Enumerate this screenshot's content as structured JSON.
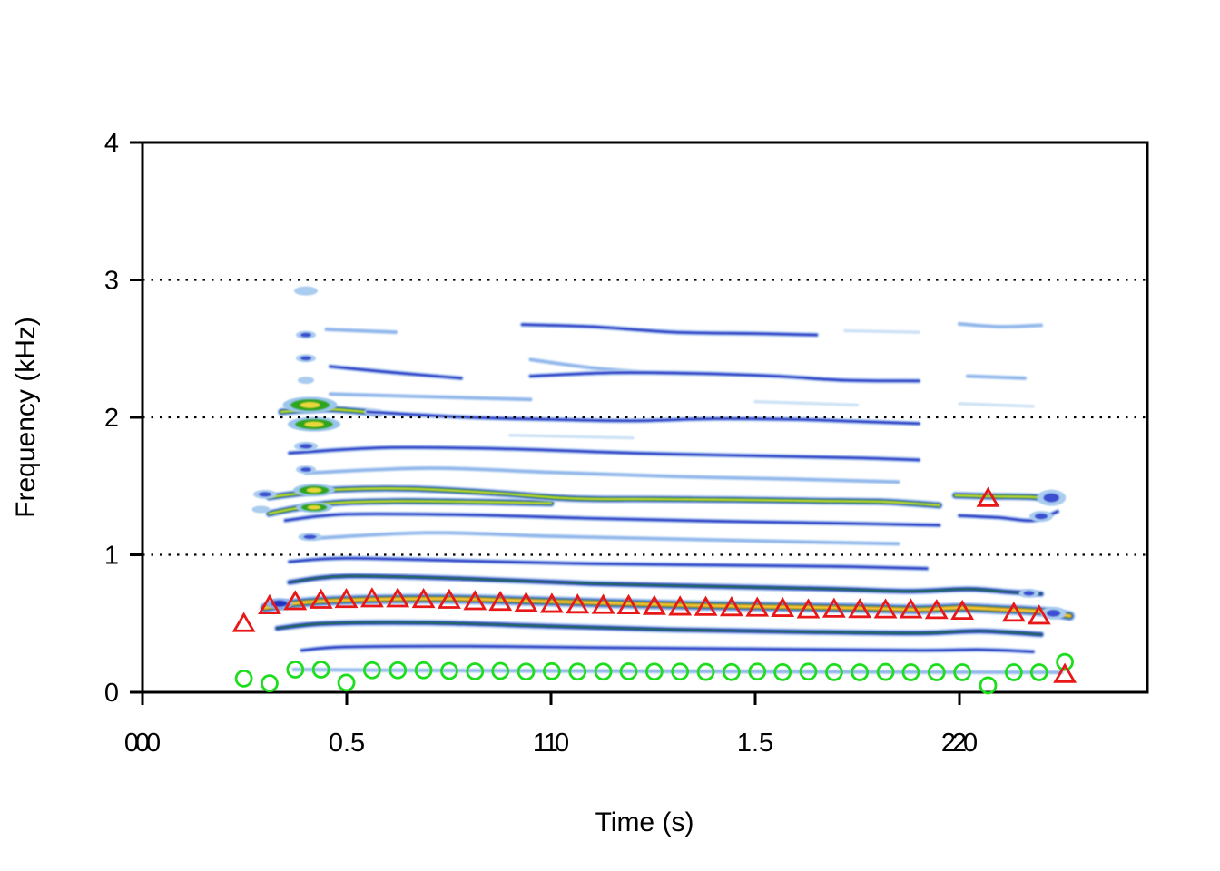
{
  "chart_data": {
    "type": "heatmap",
    "subtype": "spectrogram-with-pitch-track",
    "title": "",
    "xlabel": "Time (s)",
    "ylabel": "Frequency (kHz)",
    "xlim": [
      0,
      2.46
    ],
    "ylim": [
      0,
      4
    ],
    "grid": "dotted horizontal lines",
    "gridlines_khz": [
      1,
      2,
      3
    ],
    "x_ticks": [
      {
        "t": 0.0,
        "labels": [
          "0.0",
          "0"
        ]
      },
      {
        "t": 0.5,
        "labels": [
          "0.5"
        ]
      },
      {
        "t": 1.0,
        "labels": [
          "1.0",
          "1"
        ]
      },
      {
        "t": 1.5,
        "labels": [
          "1.5"
        ]
      },
      {
        "t": 2.0,
        "labels": [
          "2.0",
          "2"
        ]
      }
    ],
    "y_ticks": [
      {
        "f": 0,
        "label": "0"
      },
      {
        "f": 1,
        "label": "1"
      },
      {
        "f": 2,
        "label": "2"
      },
      {
        "f": 3,
        "label": "3"
      },
      {
        "f": 4,
        "label": "4"
      }
    ],
    "colors": {
      "triangle_marker": "#E81818",
      "circle_marker": "#1EDD1E",
      "gridline": "#000000",
      "axis": "#000000"
    },
    "band_styles": {
      "faint": [
        [
          "#CFE3F6",
          3.5
        ]
      ],
      "light": [
        [
          "#BFD9F4",
          5
        ],
        [
          "#8FB4EA",
          2.6
        ]
      ],
      "medium": [
        [
          "#C5DDF6",
          6
        ],
        [
          "#7B97E4",
          4
        ],
        [
          "#2F3FC8",
          2.4
        ]
      ],
      "strong": [
        [
          "#BBD5F2",
          8
        ],
        [
          "#4558D6",
          5
        ],
        [
          "#1525B5",
          3.4
        ],
        [
          "#217A18",
          1.7
        ]
      ],
      "strong-green": [
        [
          "#B2CFF0",
          9
        ],
        [
          "#3A50D0",
          6.2
        ],
        [
          "#1E8F14",
          4.2
        ],
        [
          "#7DC52A",
          2.3
        ],
        [
          "#DCE03E",
          1.1
        ]
      ],
      "hot": [
        [
          "#A8CAEE",
          12
        ],
        [
          "#3A50D0",
          8.5
        ],
        [
          "#1FA01A",
          6
        ],
        [
          "#E8821E",
          3.6
        ],
        [
          "#F0DC3C",
          1.6
        ]
      ]
    },
    "blob_styles": {
      "blue-light": [
        [
          "#A9CCEF",
          1.0
        ]
      ],
      "blue": [
        [
          "#A9CCEF",
          1.0
        ],
        [
          "#3A50D0",
          0.55
        ]
      ],
      "blue-dark": [
        [
          "#8FB2EA",
          1.0
        ],
        [
          "#2030C0",
          0.6
        ]
      ],
      "green-yellow": [
        [
          "#9BC6EC",
          1.0
        ],
        [
          "#2FA51E",
          0.72
        ],
        [
          "#E8D83A",
          0.36
        ]
      ]
    },
    "harmonic_bands": [
      {
        "name": "h1-f0-trace",
        "style": "light",
        "pts": [
          [
            0.37,
            0.165
          ],
          [
            0.6,
            0.16
          ],
          [
            1.0,
            0.155
          ],
          [
            1.5,
            0.15
          ],
          [
            1.9,
            0.147
          ],
          [
            2.25,
            0.145
          ]
        ]
      },
      {
        "name": "h2",
        "style": "medium",
        "pts": [
          [
            0.39,
            0.305
          ],
          [
            0.5,
            0.33
          ],
          [
            0.8,
            0.335
          ],
          [
            1.1,
            0.325
          ],
          [
            1.5,
            0.315
          ],
          [
            1.9,
            0.305
          ],
          [
            2.05,
            0.31
          ],
          [
            2.18,
            0.295
          ]
        ]
      },
      {
        "name": "h3",
        "style": "strong",
        "pts": [
          [
            0.33,
            0.465
          ],
          [
            0.45,
            0.5
          ],
          [
            0.7,
            0.505
          ],
          [
            1.0,
            0.48
          ],
          [
            1.3,
            0.455
          ],
          [
            1.6,
            0.44
          ],
          [
            1.9,
            0.43
          ],
          [
            2.05,
            0.445
          ],
          [
            2.2,
            0.42
          ]
        ]
      },
      {
        "name": "h4-hot",
        "style": "hot",
        "pts": [
          [
            0.3,
            0.615
          ],
          [
            0.4,
            0.655
          ],
          [
            0.55,
            0.675
          ],
          [
            0.75,
            0.68
          ],
          [
            0.95,
            0.665
          ],
          [
            1.15,
            0.648
          ],
          [
            1.35,
            0.632
          ],
          [
            1.55,
            0.622
          ],
          [
            1.75,
            0.613
          ],
          [
            1.9,
            0.603
          ],
          [
            2.0,
            0.615
          ],
          [
            2.1,
            0.603
          ],
          [
            2.2,
            0.588
          ],
          [
            2.27,
            0.555
          ]
        ]
      },
      {
        "name": "h5",
        "style": "strong",
        "pts": [
          [
            0.36,
            0.8
          ],
          [
            0.5,
            0.845
          ],
          [
            0.8,
            0.825
          ],
          [
            1.1,
            0.79
          ],
          [
            1.4,
            0.77
          ],
          [
            1.7,
            0.75
          ],
          [
            1.88,
            0.735
          ],
          [
            2.02,
            0.75
          ],
          [
            2.12,
            0.73
          ],
          [
            2.2,
            0.715
          ]
        ]
      },
      {
        "name": "h6",
        "style": "medium",
        "pts": [
          [
            0.36,
            0.95
          ],
          [
            0.5,
            0.975
          ],
          [
            0.8,
            0.955
          ],
          [
            1.1,
            0.935
          ],
          [
            1.4,
            0.925
          ],
          [
            1.7,
            0.915
          ],
          [
            1.92,
            0.9
          ]
        ]
      },
      {
        "name": "h7",
        "style": "light",
        "pts": [
          [
            0.42,
            1.12
          ],
          [
            0.7,
            1.16
          ],
          [
            1.0,
            1.135
          ],
          [
            1.3,
            1.115
          ],
          [
            1.6,
            1.095
          ],
          [
            1.85,
            1.08
          ]
        ]
      },
      {
        "name": "h8",
        "style": "medium",
        "pts": [
          [
            0.35,
            1.25
          ],
          [
            0.5,
            1.295
          ],
          [
            0.8,
            1.29
          ],
          [
            1.1,
            1.265
          ],
          [
            1.4,
            1.245
          ],
          [
            1.7,
            1.23
          ],
          [
            1.95,
            1.215
          ]
        ]
      },
      {
        "name": "h8-tail",
        "style": "medium",
        "pts": [
          [
            2.0,
            1.285
          ],
          [
            2.1,
            1.27
          ],
          [
            2.18,
            1.25
          ],
          [
            2.24,
            1.315
          ]
        ]
      },
      {
        "name": "h9-green-low",
        "style": "strong-green",
        "pts": [
          [
            0.31,
            1.3
          ],
          [
            0.37,
            1.335
          ],
          [
            0.46,
            1.375
          ],
          [
            0.62,
            1.39
          ],
          [
            0.82,
            1.385
          ],
          [
            1.0,
            1.375
          ]
        ]
      },
      {
        "name": "h9-green-hi",
        "style": "strong-green",
        "pts": [
          [
            0.31,
            1.42
          ],
          [
            0.38,
            1.445
          ],
          [
            0.48,
            1.475
          ],
          [
            0.66,
            1.48
          ],
          [
            0.86,
            1.45
          ],
          [
            1.05,
            1.41
          ],
          [
            1.25,
            1.405
          ],
          [
            1.45,
            1.4
          ],
          [
            1.65,
            1.392
          ],
          [
            1.82,
            1.385
          ],
          [
            1.95,
            1.36
          ]
        ]
      },
      {
        "name": "h9-tail",
        "style": "strong-green",
        "pts": [
          [
            1.99,
            1.432
          ],
          [
            2.08,
            1.425
          ],
          [
            2.18,
            1.42
          ],
          [
            2.24,
            1.398
          ]
        ]
      },
      {
        "name": "h10",
        "style": "light",
        "pts": [
          [
            0.4,
            1.595
          ],
          [
            0.7,
            1.63
          ],
          [
            1.0,
            1.6
          ],
          [
            1.3,
            1.57
          ],
          [
            1.6,
            1.55
          ],
          [
            1.85,
            1.53
          ]
        ]
      },
      {
        "name": "h11",
        "style": "medium",
        "pts": [
          [
            0.36,
            1.74
          ],
          [
            0.6,
            1.78
          ],
          [
            0.9,
            1.77
          ],
          [
            1.2,
            1.74
          ],
          [
            1.5,
            1.72
          ],
          [
            1.75,
            1.705
          ],
          [
            1.9,
            1.69
          ]
        ]
      },
      {
        "name": "h12",
        "style": "faint",
        "pts": [
          [
            0.9,
            1.87
          ],
          [
            1.2,
            1.85
          ]
        ]
      },
      {
        "name": "h13-head",
        "style": "strong-green",
        "pts": [
          [
            0.34,
            2.04
          ],
          [
            0.45,
            2.06
          ],
          [
            0.58,
            2.03
          ]
        ]
      },
      {
        "name": "h13",
        "style": "medium",
        "pts": [
          [
            0.55,
            2.04
          ],
          [
            0.8,
            2.0
          ],
          [
            1.0,
            1.985
          ],
          [
            1.2,
            1.975
          ],
          [
            1.4,
            1.99
          ],
          [
            1.6,
            1.985
          ],
          [
            1.75,
            1.97
          ],
          [
            1.9,
            1.955
          ]
        ]
      },
      {
        "name": "h14a",
        "style": "light",
        "pts": [
          [
            0.46,
            2.17
          ],
          [
            0.7,
            2.15
          ],
          [
            0.95,
            2.13
          ]
        ]
      },
      {
        "name": "h14b",
        "style": "faint",
        "pts": [
          [
            1.5,
            2.115
          ],
          [
            1.75,
            2.09
          ]
        ]
      },
      {
        "name": "h14c",
        "style": "faint",
        "pts": [
          [
            2.0,
            2.1
          ],
          [
            2.18,
            2.08
          ]
        ]
      },
      {
        "name": "h15a",
        "style": "medium",
        "pts": [
          [
            0.46,
            2.37
          ],
          [
            0.6,
            2.33
          ],
          [
            0.78,
            2.285
          ]
        ]
      },
      {
        "name": "h15b",
        "style": "light",
        "pts": [
          [
            0.95,
            2.42
          ],
          [
            1.1,
            2.36
          ],
          [
            1.22,
            2.33
          ]
        ]
      },
      {
        "name": "h15c",
        "style": "medium",
        "pts": [
          [
            0.95,
            2.3
          ],
          [
            1.15,
            2.325
          ],
          [
            1.35,
            2.32
          ],
          [
            1.55,
            2.3
          ],
          [
            1.72,
            2.27
          ],
          [
            1.9,
            2.265
          ]
        ]
      },
      {
        "name": "h15d",
        "style": "light",
        "pts": [
          [
            2.02,
            2.3
          ],
          [
            2.16,
            2.285
          ]
        ]
      },
      {
        "name": "h16a",
        "style": "light",
        "pts": [
          [
            0.45,
            2.64
          ],
          [
            0.62,
            2.62
          ]
        ]
      },
      {
        "name": "h16b",
        "style": "medium",
        "pts": [
          [
            0.93,
            2.675
          ],
          [
            1.1,
            2.66
          ],
          [
            1.3,
            2.62
          ],
          [
            1.5,
            2.61
          ],
          [
            1.65,
            2.6
          ]
        ]
      },
      {
        "name": "h16c",
        "style": "faint",
        "pts": [
          [
            1.72,
            2.63
          ],
          [
            1.9,
            2.62
          ]
        ]
      },
      {
        "name": "h16d",
        "style": "light",
        "pts": [
          [
            2.0,
            2.68
          ],
          [
            2.1,
            2.66
          ],
          [
            2.2,
            2.67
          ]
        ]
      }
    ],
    "onset_blobs": [
      [
        0.4,
        2.92,
        13,
        5,
        "blue-light"
      ],
      [
        0.4,
        2.6,
        11,
        4.5,
        "blue"
      ],
      [
        0.4,
        2.43,
        11,
        4.5,
        "blue"
      ],
      [
        0.4,
        2.27,
        9,
        4,
        "blue-light"
      ],
      [
        0.41,
        2.09,
        30,
        9,
        "green-yellow"
      ],
      [
        0.42,
        1.95,
        29,
        8,
        "green-yellow"
      ],
      [
        0.4,
        1.79,
        13,
        5,
        "blue"
      ],
      [
        0.4,
        1.62,
        11,
        4.5,
        "blue"
      ],
      [
        0.42,
        1.47,
        23,
        7,
        "green-yellow"
      ],
      [
        0.42,
        1.345,
        20,
        6,
        "green-yellow"
      ],
      [
        0.41,
        1.13,
        13,
        4.5,
        "blue"
      ],
      [
        0.335,
        0.645,
        15,
        6,
        "blue-dark"
      ],
      [
        0.3,
        1.44,
        13,
        5,
        "blue"
      ],
      [
        0.29,
        1.33,
        10,
        4,
        "blue-light"
      ],
      [
        2.225,
        1.415,
        16,
        9,
        "blue"
      ],
      [
        2.2,
        1.28,
        13,
        6,
        "blue"
      ],
      [
        2.23,
        0.575,
        14,
        7,
        "blue"
      ],
      [
        2.17,
        0.72,
        11,
        5,
        "blue"
      ]
    ],
    "pitch_triangles_t_f": [
      [
        0.248,
        0.5
      ],
      [
        0.311,
        0.63
      ],
      [
        0.374,
        0.66
      ],
      [
        0.437,
        0.67
      ],
      [
        0.499,
        0.675
      ],
      [
        0.562,
        0.68
      ],
      [
        0.625,
        0.68
      ],
      [
        0.688,
        0.675
      ],
      [
        0.751,
        0.67
      ],
      [
        0.814,
        0.66
      ],
      [
        0.876,
        0.655
      ],
      [
        0.939,
        0.648
      ],
      [
        1.002,
        0.64
      ],
      [
        1.065,
        0.635
      ],
      [
        1.128,
        0.632
      ],
      [
        1.19,
        0.63
      ],
      [
        1.253,
        0.625
      ],
      [
        1.316,
        0.62
      ],
      [
        1.379,
        0.618
      ],
      [
        1.442,
        0.615
      ],
      [
        1.505,
        0.612
      ],
      [
        1.567,
        0.61
      ],
      [
        1.63,
        0.6
      ],
      [
        1.693,
        0.605
      ],
      [
        1.756,
        0.602
      ],
      [
        1.819,
        0.6
      ],
      [
        1.881,
        0.6
      ],
      [
        1.944,
        0.595
      ],
      [
        2.007,
        0.59
      ],
      [
        2.07,
        1.41
      ],
      [
        2.133,
        0.575
      ],
      [
        2.195,
        0.555
      ],
      [
        2.258,
        0.13
      ]
    ],
    "f0_circles_t_f": [
      [
        0.248,
        0.1
      ],
      [
        0.311,
        0.065
      ],
      [
        0.374,
        0.165
      ],
      [
        0.437,
        0.165
      ],
      [
        0.499,
        0.07
      ],
      [
        0.562,
        0.16
      ],
      [
        0.625,
        0.16
      ],
      [
        0.688,
        0.16
      ],
      [
        0.751,
        0.155
      ],
      [
        0.814,
        0.152
      ],
      [
        0.876,
        0.155
      ],
      [
        0.939,
        0.15
      ],
      [
        1.002,
        0.153
      ],
      [
        1.065,
        0.15
      ],
      [
        1.128,
        0.15
      ],
      [
        1.19,
        0.152
      ],
      [
        1.253,
        0.15
      ],
      [
        1.316,
        0.15
      ],
      [
        1.379,
        0.148
      ],
      [
        1.442,
        0.147
      ],
      [
        1.505,
        0.15
      ],
      [
        1.567,
        0.146
      ],
      [
        1.63,
        0.15
      ],
      [
        1.693,
        0.146
      ],
      [
        1.756,
        0.145
      ],
      [
        1.819,
        0.148
      ],
      [
        1.881,
        0.145
      ],
      [
        1.944,
        0.145
      ],
      [
        2.007,
        0.145
      ],
      [
        2.07,
        0.05
      ],
      [
        2.133,
        0.145
      ],
      [
        2.195,
        0.145
      ],
      [
        2.258,
        0.22
      ]
    ]
  }
}
